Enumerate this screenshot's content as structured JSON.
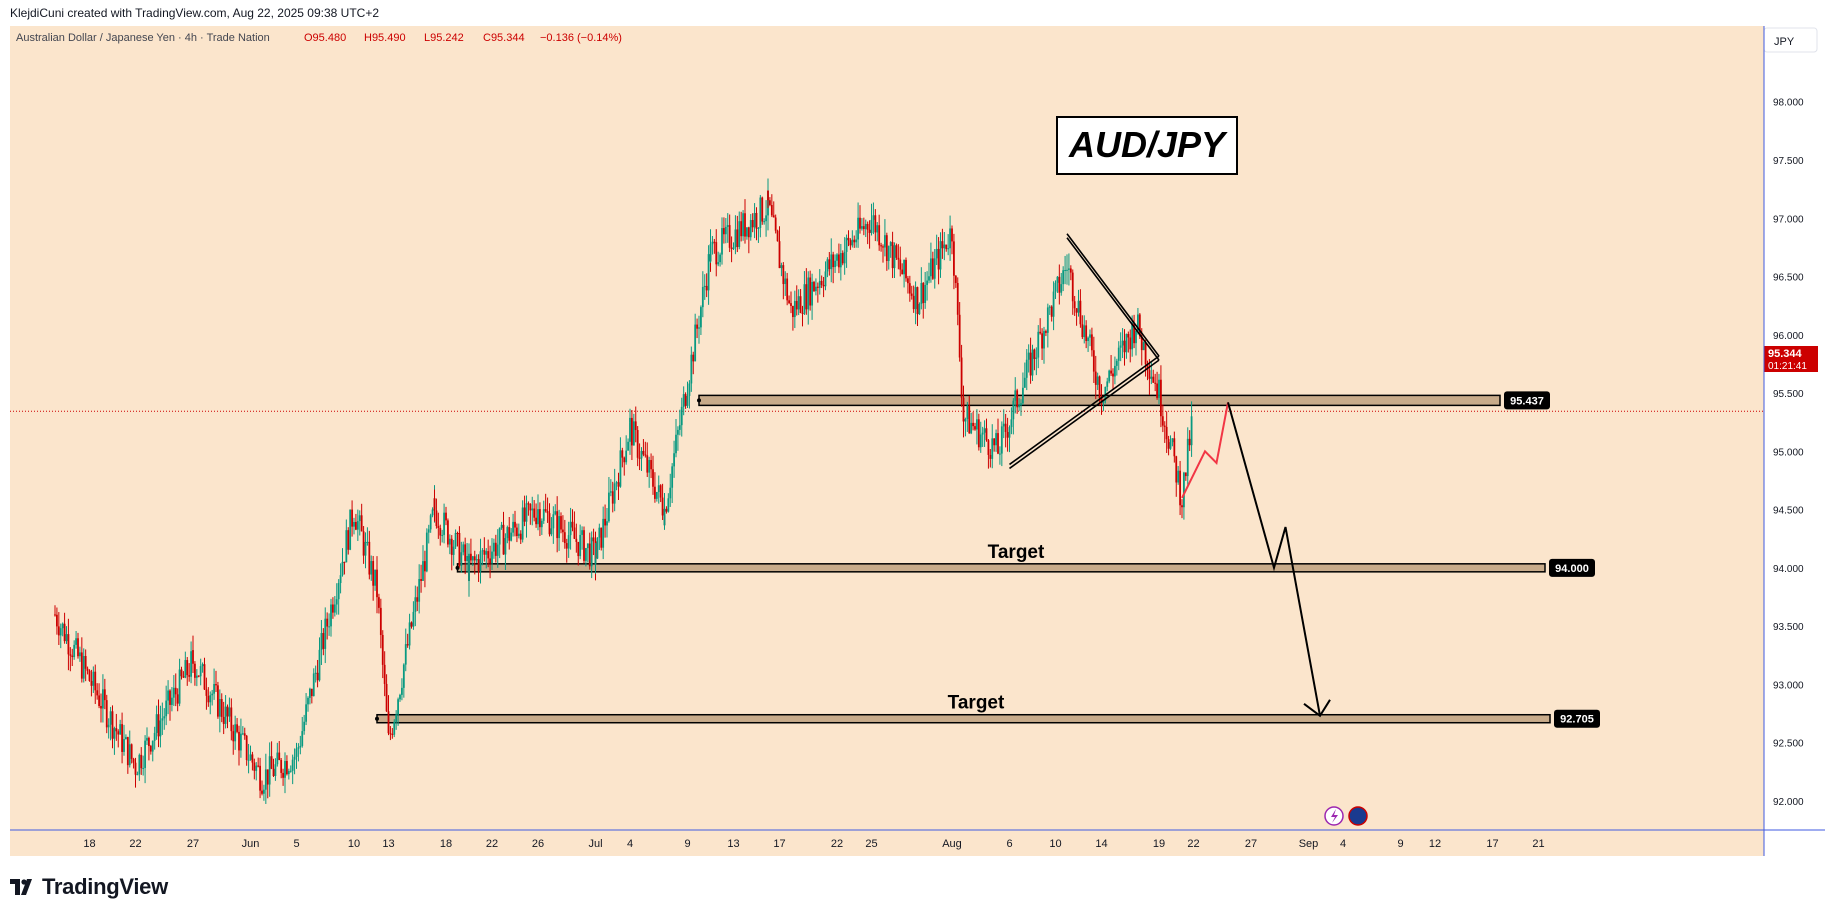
{
  "credit": "KlejdiCuni created with TradingView.com, Aug 22, 2025 09:38 UTC+2",
  "brand": "TradingView",
  "header": {
    "symbol_name": "Australian Dollar / Japanese Yen · 4h · Trade Nation",
    "open": "O95.480",
    "high": "H95.490",
    "low": "L95.242",
    "close": "C95.344",
    "change": "−0.136 (−0.14%)"
  },
  "currency_button": "JPY",
  "title_box": "AUD/JPY",
  "price_badge": {
    "price": "95.344",
    "countdown": "01:21:41"
  },
  "colors": {
    "background": "#fbe5cc",
    "up": "#089981",
    "down": "#cc0000",
    "zone": "#c8ab8a",
    "projection": "#000000",
    "bounce": "#f23645",
    "axis": "#3f5ae0"
  },
  "chart_data": {
    "type": "candlestick",
    "y_ticks": [
      "98.000",
      "97.500",
      "97.000",
      "96.500",
      "96.000",
      "95.500",
      "95.000",
      "94.500",
      "94.000",
      "93.500",
      "93.000",
      "92.500",
      "92.000"
    ],
    "ylim": [
      91.75,
      98.65
    ],
    "x_ticks": [
      "18",
      "22",
      "27",
      "Jun",
      "5",
      "10",
      "13",
      "18",
      "22",
      "26",
      "Jul",
      "4",
      "9",
      "13",
      "17",
      "22",
      "25",
      "Aug",
      "6",
      "10",
      "14",
      "19",
      "22",
      "27",
      "Sep",
      "4",
      "9",
      "12",
      "17",
      "21"
    ],
    "last_price": 95.344,
    "levels": [
      {
        "name": "resistance-zone",
        "price": 95.437,
        "label": "95.437"
      },
      {
        "name": "target-1",
        "price": 94.0,
        "label": "94.000",
        "text": "Target"
      },
      {
        "name": "target-2",
        "price": 92.705,
        "label": "92.705",
        "text": "Target"
      }
    ],
    "anchors": [
      {
        "date": "May 15",
        "price": 93.6
      },
      {
        "date": "May 22",
        "price": 92.3
      },
      {
        "date": "May 27",
        "price": 93.2
      },
      {
        "date": "Jun 2",
        "price": 92.2
      },
      {
        "date": "Jun 5",
        "price": 92.4
      },
      {
        "date": "Jun 10",
        "price": 94.5
      },
      {
        "date": "Jun 12",
        "price": 93.8
      },
      {
        "date": "Jun 13",
        "price": 92.5
      },
      {
        "date": "Jun 17",
        "price": 94.5
      },
      {
        "date": "Jun 20",
        "price": 94.0
      },
      {
        "date": "Jun 26",
        "price": 94.5
      },
      {
        "date": "Jul 1",
        "price": 94.1
      },
      {
        "date": "Jul 4",
        "price": 95.2
      },
      {
        "date": "Jul 7",
        "price": 94.5
      },
      {
        "date": "Jul 11",
        "price": 96.7
      },
      {
        "date": "Jul 16",
        "price": 97.1
      },
      {
        "date": "Jul 18",
        "price": 96.2
      },
      {
        "date": "Jul 25",
        "price": 97.0
      },
      {
        "date": "Jul 29",
        "price": 96.3
      },
      {
        "date": "Aug 1",
        "price": 96.9
      },
      {
        "date": "Aug 2",
        "price": 95.3
      },
      {
        "date": "Aug 5",
        "price": 95.0
      },
      {
        "date": "Aug 11",
        "price": 96.6
      },
      {
        "date": "Aug 14",
        "price": 95.5
      },
      {
        "date": "Aug 17",
        "price": 96.1
      },
      {
        "date": "Aug 19",
        "price": 95.5
      },
      {
        "date": "Aug 21",
        "price": 94.6
      },
      {
        "date": "Aug 22",
        "price": 95.34
      }
    ],
    "projection": [
      {
        "date": "Aug 21",
        "price": 94.6
      },
      {
        "date": "Aug 23",
        "price": 95.0
      },
      {
        "date": "Aug 24",
        "price": 94.9
      },
      {
        "date": "Aug 25",
        "price": 95.42
      },
      {
        "date": "Aug 29",
        "price": 94.0
      },
      {
        "date": "Aug 30",
        "price": 94.35
      },
      {
        "date": "Sep 2",
        "price": 92.73
      }
    ],
    "triangle": {
      "upper": [
        {
          "date": "Aug 11",
          "price": 96.85
        },
        {
          "date": "Aug 19",
          "price": 95.8
        }
      ],
      "lower": [
        {
          "date": "Aug 6",
          "price": 94.87
        },
        {
          "date": "Aug 19",
          "price": 95.8
        }
      ]
    }
  }
}
